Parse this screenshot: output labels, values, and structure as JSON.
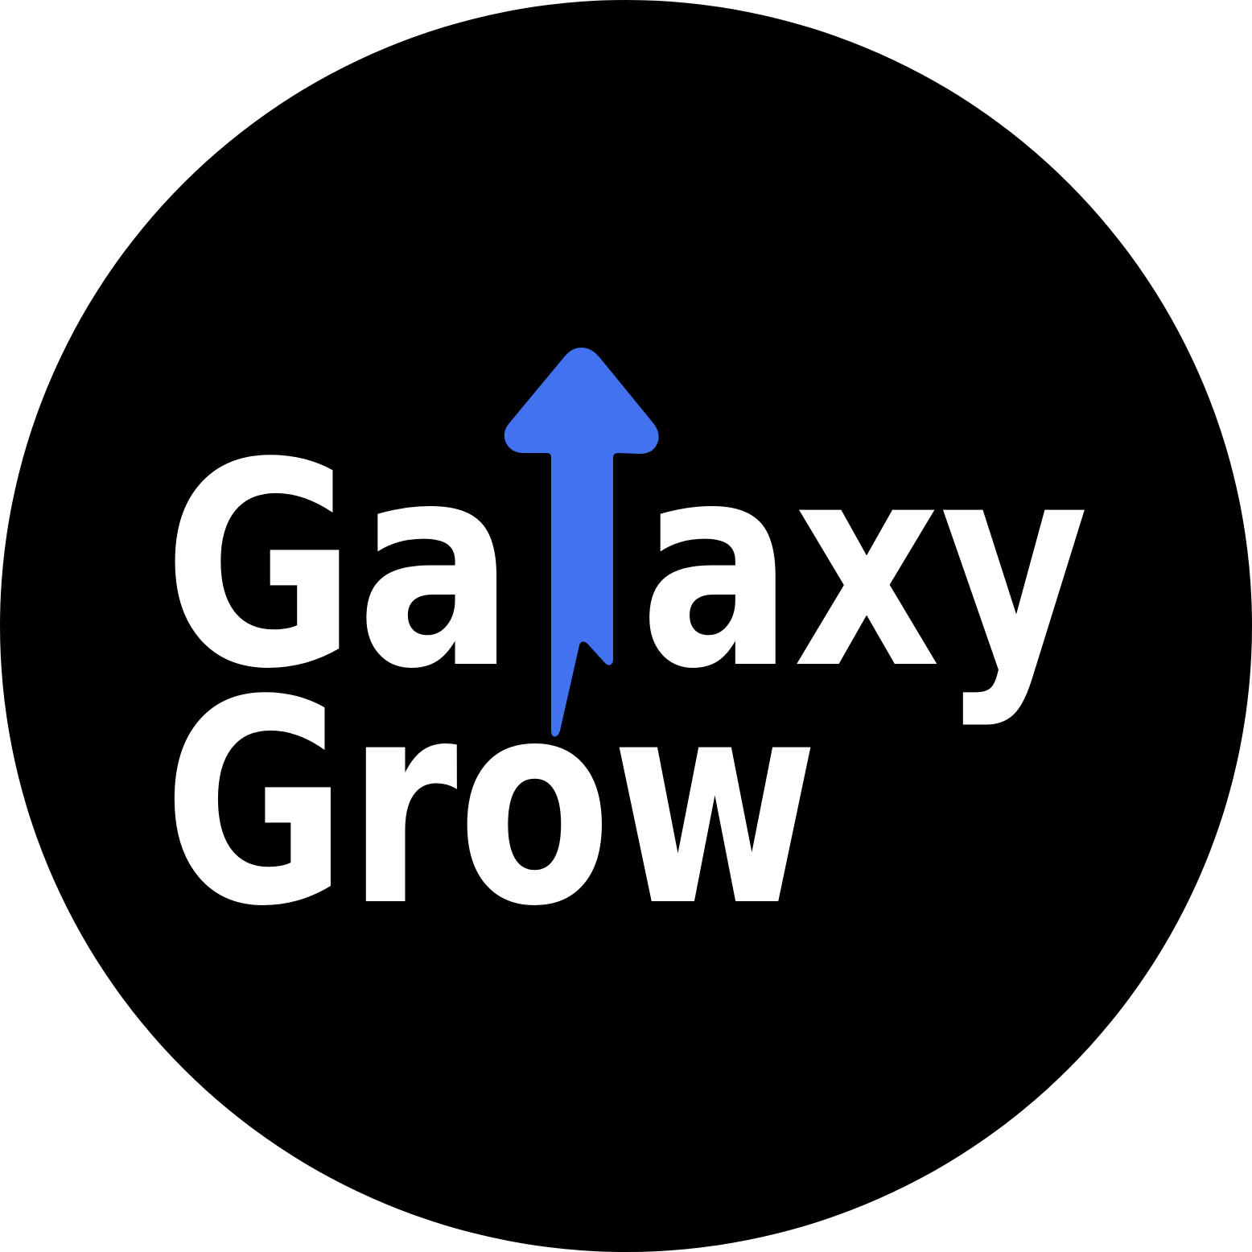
{
  "logo": {
    "line1": [
      "Ga",
      "axy"
    ],
    "line2": "Grow"
  }
}
